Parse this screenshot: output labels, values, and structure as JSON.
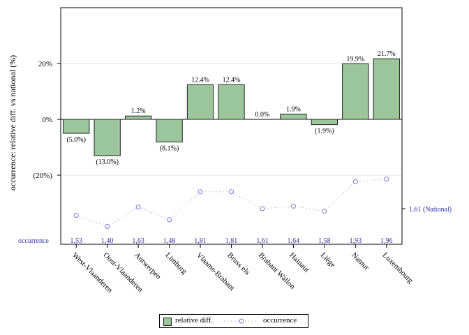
{
  "chart_data": {
    "type": "bar",
    "ylabel": "occurrence: relative diff. vs national (%)",
    "ylim": [
      -0.45,
      0.4
    ],
    "y_ticks": [
      0.2,
      0,
      -0.2
    ],
    "y_tick_labels": [
      "20%",
      "0%",
      "(20%)"
    ],
    "categories": [
      "West-Vlaanderen",
      "Oost-Vlaanderen",
      "Antwerpen",
      "Limburg",
      "Vlaams-Brabant",
      "Bruss els",
      "Brabant Wallon",
      "Hainaut",
      "Liège",
      "Namur",
      "Luxembourg"
    ],
    "series": [
      {
        "name": "relative diff.",
        "values": [
          -0.05,
          -0.13,
          0.012,
          -0.081,
          0.124,
          0.124,
          0.0,
          0.019,
          -0.019,
          0.199,
          0.217
        ],
        "labels": [
          "(5.0%)",
          "(13.0%)",
          "1.2%",
          "(8.1%)",
          "12.4%",
          "12.4%",
          "0.0%",
          "1.9%",
          "(1.9%)",
          "19.9%",
          "21.7%"
        ],
        "color": "#9bc69b"
      },
      {
        "name": "occurrence",
        "values": [
          1.53,
          1.4,
          1.63,
          1.48,
          1.81,
          1.81,
          1.61,
          1.64,
          1.58,
          1.93,
          1.96
        ],
        "labels": [
          "1,53",
          "1,40",
          "1,63",
          "1,48",
          "1,81",
          "1,81",
          "1,61",
          "1,64",
          "1,58",
          "1,93",
          "1,96"
        ],
        "color": "#7777dd"
      }
    ],
    "occurrence_row_label": "occurrence",
    "national": {
      "value": 1.61,
      "label": "1.61 (National)"
    },
    "legend_position": "bottom",
    "grid": true
  }
}
